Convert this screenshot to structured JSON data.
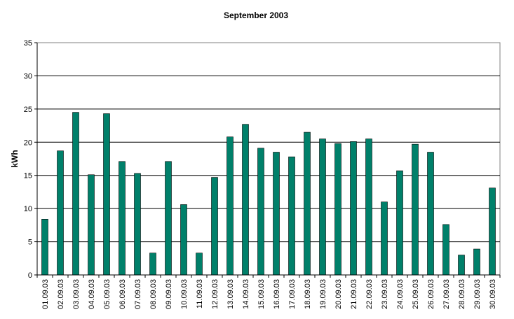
{
  "chart_data": {
    "type": "bar",
    "title": "September 2003",
    "xlabel": "",
    "ylabel": "kWh",
    "ylim": [
      0,
      35
    ],
    "yticks": [
      0,
      5,
      10,
      15,
      20,
      25,
      30,
      35
    ],
    "grid": true,
    "legend": "none",
    "bar_color": "#00806a",
    "categories": [
      "01.09.03",
      "02.09.03",
      "03.09.03",
      "04.09.03",
      "05.09.03",
      "06.09.03",
      "07.09.03",
      "08.09.03",
      "09.09.03",
      "10.09.03",
      "11.09.03",
      "12.09.03",
      "13.09.03",
      "14.09.03",
      "15.09.03",
      "16.09.03",
      "17.09.03",
      "18.09.03",
      "19.09.03",
      "20.09.03",
      "21.09.03",
      "22.09.03",
      "23.09.03",
      "24.09.03",
      "25.09.03",
      "26.09.03",
      "27.09.03",
      "28.09.03",
      "29.09.03",
      "30.09.03"
    ],
    "values": [
      8.4,
      18.7,
      24.5,
      15.1,
      24.3,
      17.1,
      15.3,
      3.3,
      17.1,
      10.6,
      3.3,
      14.7,
      20.8,
      22.7,
      19.1,
      18.5,
      17.8,
      21.5,
      20.5,
      19.8,
      20.1,
      20.5,
      11.0,
      15.7,
      19.7,
      18.5,
      7.6,
      3.0,
      3.9,
      13.1
    ]
  }
}
